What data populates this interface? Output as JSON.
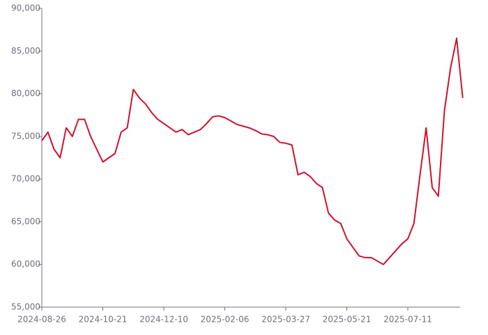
{
  "chart_data": {
    "type": "line",
    "categories": [
      "2024-08-26",
      null,
      null,
      null,
      null,
      null,
      null,
      null,
      null,
      null,
      "2024-10-21",
      null,
      null,
      null,
      null,
      null,
      null,
      null,
      null,
      null,
      "2024-12-10",
      null,
      null,
      null,
      null,
      null,
      null,
      null,
      null,
      null,
      "2025-02-06",
      null,
      null,
      null,
      null,
      null,
      null,
      null,
      null,
      null,
      "2025-03-27",
      null,
      null,
      null,
      null,
      null,
      null,
      null,
      null,
      null,
      "2025-05-21",
      null,
      null,
      null,
      null,
      null,
      null,
      null,
      null,
      null,
      "2025-07-11",
      null,
      null,
      null,
      null,
      null,
      null,
      null,
      null,
      null
    ],
    "series": [
      {
        "color": "#d0112b",
        "values": [
          74500,
          75500,
          73500,
          72500,
          76000,
          75000,
          77000,
          77000,
          75000,
          73500,
          72000,
          72500,
          73000,
          75500,
          76000,
          80500,
          79500,
          78800,
          77800,
          77000,
          76500,
          76000,
          75500,
          75800,
          75200,
          75500,
          75800,
          76500,
          77300,
          77400,
          77200,
          76800,
          76400,
          76200,
          76000,
          75700,
          75300,
          75200,
          75000,
          74300,
          74200,
          74000,
          70500,
          70800,
          70300,
          69500,
          69000,
          66000,
          65200,
          64800,
          63000,
          62000,
          61000,
          60800,
          60800,
          60400,
          60000,
          60800,
          61600,
          62400,
          63000,
          64800,
          70500,
          76000,
          69000,
          68000,
          78000,
          83000,
          86500,
          79500
        ]
      }
    ],
    "ylim": [
      55000,
      90000
    ],
    "yticks": [
      {
        "value": 55000,
        "label": "55,000"
      },
      {
        "value": 60000,
        "label": "60,000"
      },
      {
        "value": 65000,
        "label": "65,000"
      },
      {
        "value": 70000,
        "label": "70,000"
      },
      {
        "value": 75000,
        "label": "75,000"
      },
      {
        "value": 80000,
        "label": "80,000"
      },
      {
        "value": 85000,
        "label": "85,000"
      },
      {
        "value": 90000,
        "label": "90,000"
      }
    ]
  }
}
